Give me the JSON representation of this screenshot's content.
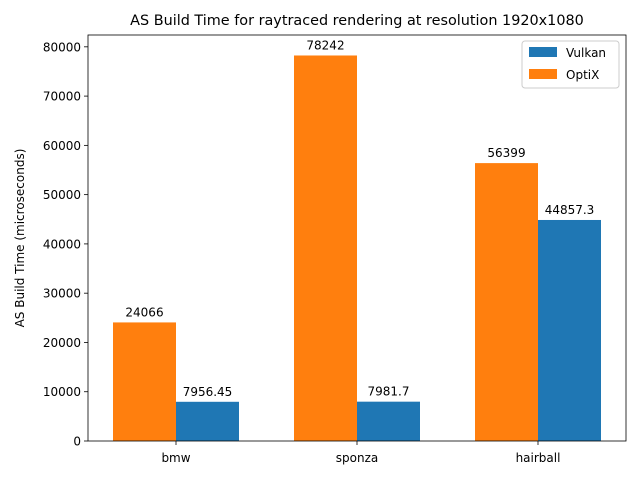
{
  "chart_data": {
    "type": "bar",
    "title": "AS Build Time for raytraced rendering at resolution 1920x1080",
    "xlabel": "",
    "ylabel": "AS Build Time (microseconds)",
    "ylim": [
      0,
      82400
    ],
    "yticks": [
      0,
      10000,
      20000,
      30000,
      40000,
      50000,
      60000,
      70000,
      80000
    ],
    "categories": [
      "bmw",
      "sponza",
      "hairball"
    ],
    "series": [
      {
        "name": "Vulkan",
        "color": "#1f77b4",
        "values": [
          7956.45,
          7981.7,
          44857.3
        ],
        "labels": [
          "7956.45",
          "7981.7",
          "44857.3"
        ]
      },
      {
        "name": "OptiX",
        "color": "#ff7f0e",
        "values": [
          24066,
          78242,
          56399
        ],
        "labels": [
          "24066",
          "78242",
          "56399"
        ]
      }
    ],
    "grid": false,
    "legend": "top-right"
  }
}
